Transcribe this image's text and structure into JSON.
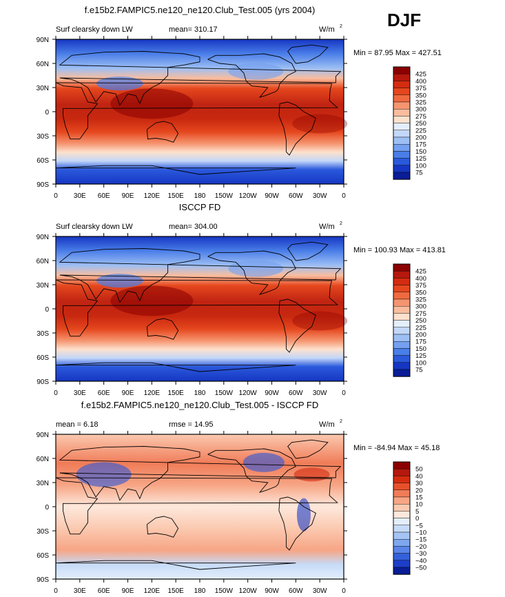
{
  "season": "DJF",
  "units": "W/m",
  "units_superscript": "2",
  "chart_data": [
    {
      "type": "heatmap",
      "title": "f.e15b2.FAMPIC5.ne120_ne120.Club_Test.005 (yrs 2004)",
      "left_label": "Surf clearsky down LW",
      "stat_label": "mean=",
      "stat_value": "310.17",
      "min_max_text": "Min =  87.95 Max = 427.51",
      "min": 87.95,
      "max": 427.51,
      "xlim": [
        0,
        360
      ],
      "ylim": [
        -90,
        90
      ],
      "colorbar_levels": [
        "425",
        "400",
        "375",
        "350",
        "325",
        "300",
        "275",
        "250",
        "225",
        "200",
        "175",
        "150",
        "125",
        "100",
        "75"
      ],
      "colorbar_colors": [
        "#8b0000",
        "#b5180e",
        "#d42c10",
        "#e5471e",
        "#ef6a40",
        "#f59570",
        "#f9bd9e",
        "#fde1cd",
        "#e4eefc",
        "#c3d7f8",
        "#9dbff4",
        "#74a0ef",
        "#4a7ee8",
        "#2b59dc",
        "#1536c2",
        "#0a1d96"
      ]
    },
    {
      "type": "heatmap",
      "title": "ISCCP FD",
      "left_label": "Surf clearsky down LW",
      "stat_label": "mean=",
      "stat_value": "304.00",
      "min_max_text": "Min = 100.93 Max = 413.81",
      "min": 100.93,
      "max": 413.81,
      "xlim": [
        0,
        360
      ],
      "ylim": [
        -90,
        90
      ],
      "colorbar_levels": [
        "425",
        "400",
        "375",
        "350",
        "325",
        "300",
        "275",
        "250",
        "225",
        "200",
        "175",
        "150",
        "125",
        "100",
        "75"
      ],
      "colorbar_colors": [
        "#8b0000",
        "#b5180e",
        "#d42c10",
        "#e5471e",
        "#ef6a40",
        "#f59570",
        "#f9bd9e",
        "#fde1cd",
        "#e4eefc",
        "#c3d7f8",
        "#9dbff4",
        "#74a0ef",
        "#4a7ee8",
        "#2b59dc",
        "#1536c2",
        "#0a1d96"
      ]
    },
    {
      "type": "heatmap",
      "title": "f.e15b2.FAMPIC5.ne120_ne120.Club_Test.005 - ISCCP FD",
      "left_label": "mean =",
      "stat_label": "rmse =",
      "stat_value": "14.95",
      "mean_value": "6.18",
      "min_max_text": "Min = -84.94 Max =  45.18",
      "min": -84.94,
      "max": 45.18,
      "xlim": [
        0,
        360
      ],
      "ylim": [
        -90,
        90
      ],
      "colorbar_levels": [
        "50",
        "40",
        "30",
        "20",
        "15",
        "10",
        "5",
        "0",
        "−5",
        "−10",
        "−15",
        "−20",
        "−30",
        "−40",
        "−50"
      ],
      "colorbar_colors": [
        "#8b0000",
        "#b5180e",
        "#d42c10",
        "#e8502b",
        "#f07c58",
        "#f7a585",
        "#fbc9b0",
        "#fde8dc",
        "#e4eefc",
        "#c6dbf8",
        "#a5c3f4",
        "#7ea7ef",
        "#5a85e8",
        "#3460da",
        "#1c3ec8",
        "#0a1d96"
      ]
    }
  ],
  "lat_ticks": [
    "90N",
    "60N",
    "30N",
    "0",
    "30S",
    "60S",
    "90S"
  ],
  "lon_ticks": [
    "0",
    "30E",
    "60E",
    "90E",
    "120E",
    "150E",
    "180",
    "150W",
    "120W",
    "90W",
    "60W",
    "30W",
    "0"
  ]
}
